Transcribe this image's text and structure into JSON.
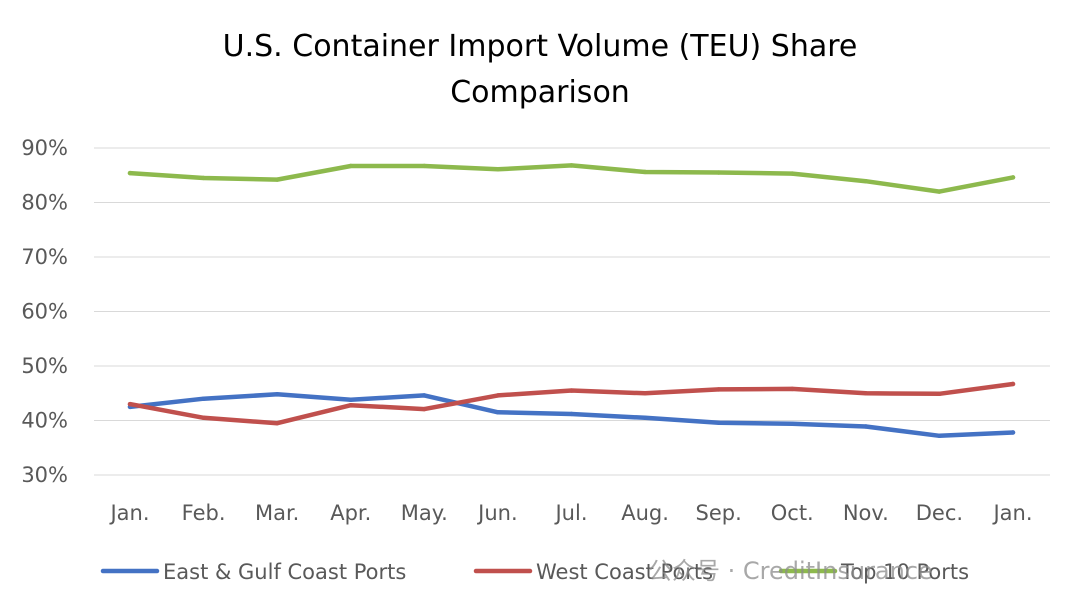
{
  "chart_data": {
    "type": "line",
    "title": [
      "U.S. Container Import Volume (TEU) Share",
      "Comparison"
    ],
    "xlabel": "",
    "ylabel": "",
    "categories": [
      "Jan.",
      "Feb.",
      "Mar.",
      "Apr.",
      "May.",
      "Jun.",
      "Jul.",
      "Aug.",
      "Sep.",
      "Oct.",
      "Nov.",
      "Dec.",
      "Jan."
    ],
    "ylim": [
      30,
      90
    ],
    "yticks": [
      30,
      40,
      50,
      60,
      70,
      80,
      90
    ],
    "ytick_labels": [
      "30%",
      "40%",
      "50%",
      "60%",
      "70%",
      "80%",
      "90%"
    ],
    "grid": true,
    "legend_position": "bottom",
    "series": [
      {
        "name": "East & Gulf Coast Ports",
        "color": "#4472C4",
        "values": [
          42.5,
          44.0,
          44.8,
          43.8,
          44.6,
          41.5,
          41.2,
          40.5,
          39.6,
          39.4,
          38.9,
          37.2,
          37.8
        ]
      },
      {
        "name": "West Coast Ports",
        "color": "#C0504D",
        "values": [
          43.0,
          40.5,
          39.5,
          42.8,
          42.1,
          44.6,
          45.5,
          45.0,
          45.7,
          45.8,
          45.0,
          44.9,
          46.7
        ]
      },
      {
        "name": "Top 10 Ports",
        "color": "#8DB94D",
        "values": [
          85.4,
          84.5,
          84.2,
          86.7,
          86.7,
          86.1,
          86.8,
          85.6,
          85.5,
          85.3,
          83.9,
          82.0,
          84.6
        ]
      }
    ]
  },
  "watermark": {
    "text": "公众号 · CreditInsurance"
  }
}
